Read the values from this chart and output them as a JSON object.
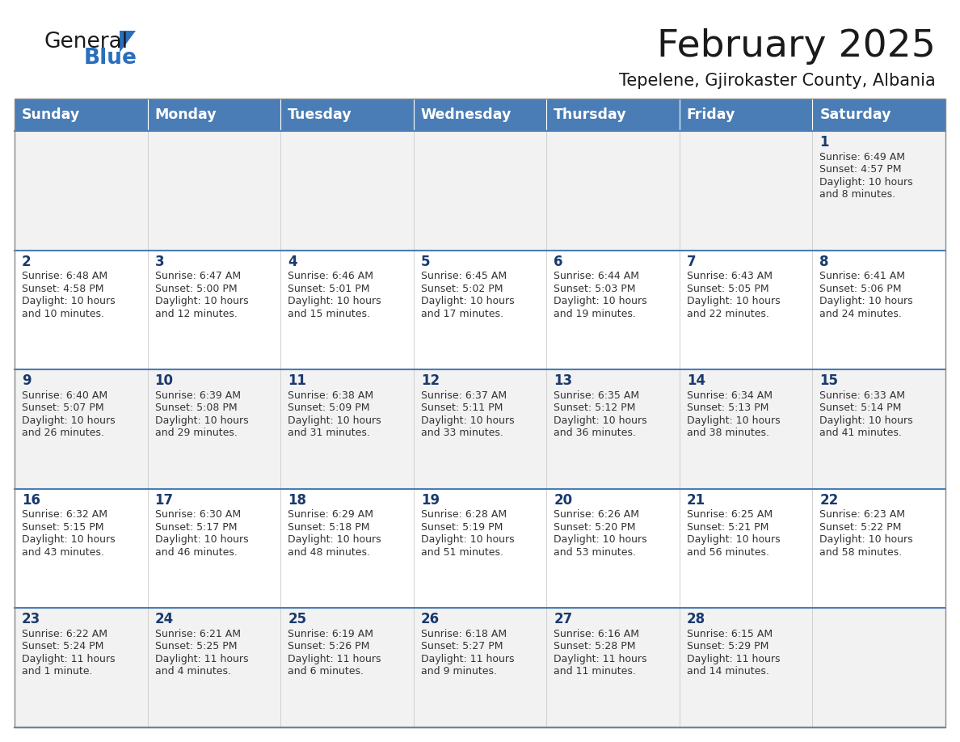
{
  "title": "February 2025",
  "subtitle": "Tepelene, Gjirokaster County, Albania",
  "days_of_week": [
    "Sunday",
    "Monday",
    "Tuesday",
    "Wednesday",
    "Thursday",
    "Friday",
    "Saturday"
  ],
  "header_bg": "#4a7db5",
  "header_text": "#ffffff",
  "row_bg_odd": "#f2f2f2",
  "row_bg_even": "#ffffff",
  "cell_border": "#c8c8c8",
  "row_border": "#4a7db5",
  "day_num_color": "#1a3a6e",
  "info_text_color": "#333333",
  "logo_general_color": "#1a1a1a",
  "logo_blue_color": "#2a6fbe",
  "title_color": "#1a1a1a",
  "subtitle_color": "#1a1a1a",
  "calendar_data": [
    [
      null,
      null,
      null,
      null,
      null,
      null,
      {
        "day": 1,
        "sunrise": "6:49 AM",
        "sunset": "4:57 PM",
        "daylight": "10 hours and 8 minutes."
      }
    ],
    [
      {
        "day": 2,
        "sunrise": "6:48 AM",
        "sunset": "4:58 PM",
        "daylight": "10 hours and 10 minutes."
      },
      {
        "day": 3,
        "sunrise": "6:47 AM",
        "sunset": "5:00 PM",
        "daylight": "10 hours and 12 minutes."
      },
      {
        "day": 4,
        "sunrise": "6:46 AM",
        "sunset": "5:01 PM",
        "daylight": "10 hours and 15 minutes."
      },
      {
        "day": 5,
        "sunrise": "6:45 AM",
        "sunset": "5:02 PM",
        "daylight": "10 hours and 17 minutes."
      },
      {
        "day": 6,
        "sunrise": "6:44 AM",
        "sunset": "5:03 PM",
        "daylight": "10 hours and 19 minutes."
      },
      {
        "day": 7,
        "sunrise": "6:43 AM",
        "sunset": "5:05 PM",
        "daylight": "10 hours and 22 minutes."
      },
      {
        "day": 8,
        "sunrise": "6:41 AM",
        "sunset": "5:06 PM",
        "daylight": "10 hours and 24 minutes."
      }
    ],
    [
      {
        "day": 9,
        "sunrise": "6:40 AM",
        "sunset": "5:07 PM",
        "daylight": "10 hours and 26 minutes."
      },
      {
        "day": 10,
        "sunrise": "6:39 AM",
        "sunset": "5:08 PM",
        "daylight": "10 hours and 29 minutes."
      },
      {
        "day": 11,
        "sunrise": "6:38 AM",
        "sunset": "5:09 PM",
        "daylight": "10 hours and 31 minutes."
      },
      {
        "day": 12,
        "sunrise": "6:37 AM",
        "sunset": "5:11 PM",
        "daylight": "10 hours and 33 minutes."
      },
      {
        "day": 13,
        "sunrise": "6:35 AM",
        "sunset": "5:12 PM",
        "daylight": "10 hours and 36 minutes."
      },
      {
        "day": 14,
        "sunrise": "6:34 AM",
        "sunset": "5:13 PM",
        "daylight": "10 hours and 38 minutes."
      },
      {
        "day": 15,
        "sunrise": "6:33 AM",
        "sunset": "5:14 PM",
        "daylight": "10 hours and 41 minutes."
      }
    ],
    [
      {
        "day": 16,
        "sunrise": "6:32 AM",
        "sunset": "5:15 PM",
        "daylight": "10 hours and 43 minutes."
      },
      {
        "day": 17,
        "sunrise": "6:30 AM",
        "sunset": "5:17 PM",
        "daylight": "10 hours and 46 minutes."
      },
      {
        "day": 18,
        "sunrise": "6:29 AM",
        "sunset": "5:18 PM",
        "daylight": "10 hours and 48 minutes."
      },
      {
        "day": 19,
        "sunrise": "6:28 AM",
        "sunset": "5:19 PM",
        "daylight": "10 hours and 51 minutes."
      },
      {
        "day": 20,
        "sunrise": "6:26 AM",
        "sunset": "5:20 PM",
        "daylight": "10 hours and 53 minutes."
      },
      {
        "day": 21,
        "sunrise": "6:25 AM",
        "sunset": "5:21 PM",
        "daylight": "10 hours and 56 minutes."
      },
      {
        "day": 22,
        "sunrise": "6:23 AM",
        "sunset": "5:22 PM",
        "daylight": "10 hours and 58 minutes."
      }
    ],
    [
      {
        "day": 23,
        "sunrise": "6:22 AM",
        "sunset": "5:24 PM",
        "daylight": "11 hours and 1 minute."
      },
      {
        "day": 24,
        "sunrise": "6:21 AM",
        "sunset": "5:25 PM",
        "daylight": "11 hours and 4 minutes."
      },
      {
        "day": 25,
        "sunrise": "6:19 AM",
        "sunset": "5:26 PM",
        "daylight": "11 hours and 6 minutes."
      },
      {
        "day": 26,
        "sunrise": "6:18 AM",
        "sunset": "5:27 PM",
        "daylight": "11 hours and 9 minutes."
      },
      {
        "day": 27,
        "sunrise": "6:16 AM",
        "sunset": "5:28 PM",
        "daylight": "11 hours and 11 minutes."
      },
      {
        "day": 28,
        "sunrise": "6:15 AM",
        "sunset": "5:29 PM",
        "daylight": "11 hours and 14 minutes."
      },
      null
    ]
  ]
}
